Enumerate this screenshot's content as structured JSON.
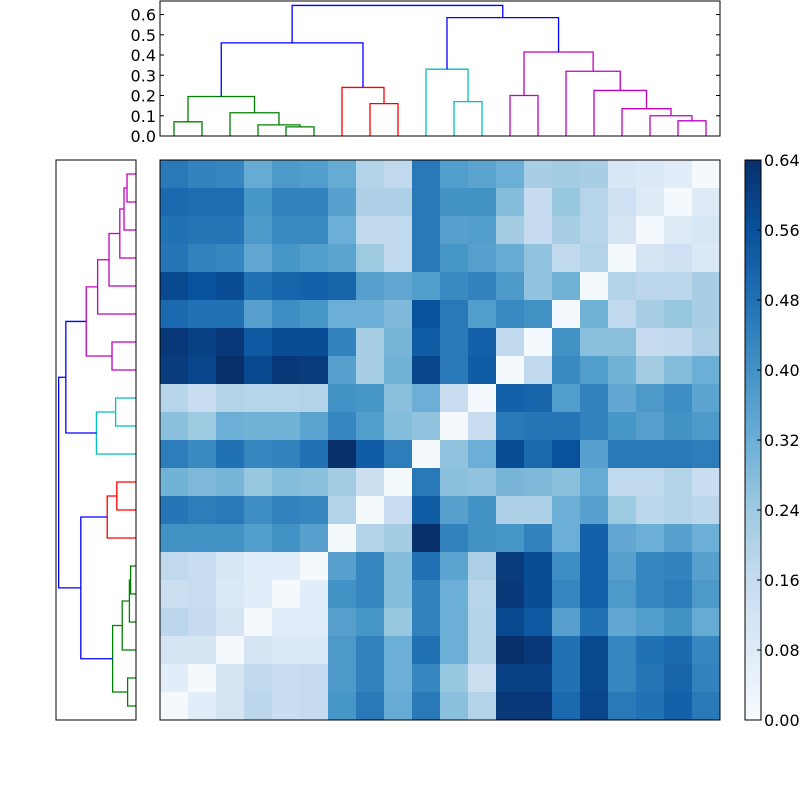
{
  "chart_data": {
    "type": "heatmap",
    "title": "",
    "description_kind": "clustered heatmap with row and column dendrograms",
    "colormap": [
      "#f7fbff",
      "#deebf7",
      "#c6dbef",
      "#9ecae1",
      "#6baed6",
      "#4292c6",
      "#2171b5",
      "#08519c",
      "#08306b"
    ],
    "vlim": [
      0,
      0.64
    ],
    "colorbar_ticks": [
      "0.00",
      "0.08",
      "0.16",
      "0.24",
      "0.32",
      "0.40",
      "0.48",
      "0.56",
      "0.64"
    ],
    "dendrogram_ticks": [
      "0.0",
      "0.1",
      "0.2",
      "0.3",
      "0.4",
      "0.5",
      "0.6"
    ],
    "dendrogram_ylim": [
      0,
      0.667
    ],
    "n_leaves": 20,
    "links": [
      [
        4,
        5,
        0.045,
        "green"
      ],
      [
        3,
        20,
        0.055,
        "green"
      ],
      [
        0,
        1,
        0.07,
        "green"
      ],
      [
        2,
        21,
        0.115,
        "green"
      ],
      [
        22,
        23,
        0.195,
        "green"
      ],
      [
        7,
        8,
        0.16,
        "red"
      ],
      [
        6,
        25,
        0.24,
        "red"
      ],
      [
        24,
        26,
        0.46,
        "blue"
      ],
      [
        10,
        11,
        0.17,
        "cyan"
      ],
      [
        9,
        28,
        0.33,
        "cyan"
      ],
      [
        18,
        19,
        0.075,
        "magenta"
      ],
      [
        17,
        30,
        0.1,
        "magenta"
      ],
      [
        16,
        31,
        0.135,
        "magenta"
      ],
      [
        15,
        32,
        0.225,
        "magenta"
      ],
      [
        12,
        13,
        0.2,
        "magenta"
      ],
      [
        14,
        33,
        0.32,
        "magenta"
      ],
      [
        34,
        35,
        0.415,
        "magenta"
      ],
      [
        29,
        36,
        0.585,
        "blue"
      ],
      [
        27,
        37,
        0.645,
        "blue"
      ]
    ],
    "link_colors": {
      "green": "#008000",
      "red": "#ff0000",
      "cyan": "#00bfbf",
      "magenta": "#bf00bf",
      "blue": "#0000ff"
    },
    "matrix_rows_top_to_bottom": [
      [
        0.46,
        0.44,
        0.43,
        0.33,
        0.38,
        0.37,
        0.33,
        0.2,
        0.17,
        0.46,
        0.37,
        0.35,
        0.32,
        0.22,
        0.23,
        0.22,
        0.1,
        0.09,
        0.07,
        0.01
      ],
      [
        0.5,
        0.49,
        0.49,
        0.39,
        0.44,
        0.44,
        0.36,
        0.21,
        0.21,
        0.46,
        0.4,
        0.4,
        0.28,
        0.16,
        0.25,
        0.19,
        0.13,
        0.08,
        0.01,
        0.08
      ],
      [
        0.48,
        0.47,
        0.47,
        0.38,
        0.42,
        0.42,
        0.32,
        0.17,
        0.17,
        0.46,
        0.36,
        0.37,
        0.23,
        0.16,
        0.22,
        0.19,
        0.11,
        0.01,
        0.08,
        0.1
      ],
      [
        0.47,
        0.44,
        0.43,
        0.34,
        0.39,
        0.37,
        0.35,
        0.24,
        0.17,
        0.46,
        0.39,
        0.36,
        0.33,
        0.26,
        0.17,
        0.2,
        0.01,
        0.11,
        0.13,
        0.09
      ],
      [
        0.58,
        0.56,
        0.57,
        0.48,
        0.51,
        0.52,
        0.51,
        0.36,
        0.34,
        0.37,
        0.42,
        0.44,
        0.38,
        0.26,
        0.31,
        0.01,
        0.2,
        0.18,
        0.18,
        0.22
      ],
      [
        0.5,
        0.48,
        0.48,
        0.36,
        0.41,
        0.39,
        0.32,
        0.32,
        0.29,
        0.56,
        0.46,
        0.37,
        0.42,
        0.4,
        0.01,
        0.31,
        0.17,
        0.22,
        0.25,
        0.22
      ],
      [
        0.62,
        0.6,
        0.62,
        0.54,
        0.57,
        0.57,
        0.44,
        0.22,
        0.3,
        0.53,
        0.46,
        0.52,
        0.17,
        0.01,
        0.4,
        0.27,
        0.27,
        0.16,
        0.17,
        0.21
      ],
      [
        0.61,
        0.59,
        0.64,
        0.58,
        0.62,
        0.61,
        0.36,
        0.22,
        0.31,
        0.59,
        0.46,
        0.53,
        0.01,
        0.17,
        0.42,
        0.37,
        0.31,
        0.23,
        0.28,
        0.32
      ],
      [
        0.19,
        0.15,
        0.2,
        0.19,
        0.19,
        0.2,
        0.4,
        0.39,
        0.27,
        0.32,
        0.15,
        0.01,
        0.52,
        0.51,
        0.37,
        0.44,
        0.34,
        0.38,
        0.41,
        0.35
      ],
      [
        0.27,
        0.24,
        0.32,
        0.31,
        0.31,
        0.35,
        0.43,
        0.37,
        0.28,
        0.26,
        0.01,
        0.15,
        0.46,
        0.47,
        0.47,
        0.44,
        0.39,
        0.36,
        0.4,
        0.38
      ],
      [
        0.45,
        0.42,
        0.48,
        0.43,
        0.44,
        0.48,
        0.64,
        0.53,
        0.45,
        0.01,
        0.26,
        0.32,
        0.57,
        0.5,
        0.56,
        0.36,
        0.46,
        0.46,
        0.46,
        0.45
      ],
      [
        0.31,
        0.29,
        0.3,
        0.25,
        0.28,
        0.27,
        0.23,
        0.14,
        0.01,
        0.46,
        0.27,
        0.26,
        0.3,
        0.29,
        0.27,
        0.33,
        0.17,
        0.17,
        0.2,
        0.15
      ],
      [
        0.47,
        0.45,
        0.46,
        0.41,
        0.44,
        0.43,
        0.2,
        0.01,
        0.15,
        0.53,
        0.36,
        0.4,
        0.21,
        0.21,
        0.32,
        0.36,
        0.24,
        0.18,
        0.2,
        0.18
      ],
      [
        0.4,
        0.4,
        0.4,
        0.37,
        0.4,
        0.36,
        0.01,
        0.2,
        0.23,
        0.64,
        0.44,
        0.4,
        0.39,
        0.44,
        0.32,
        0.52,
        0.34,
        0.32,
        0.36,
        0.32
      ],
      [
        0.17,
        0.15,
        0.1,
        0.07,
        0.07,
        0.01,
        0.36,
        0.43,
        0.28,
        0.48,
        0.35,
        0.21,
        0.61,
        0.57,
        0.41,
        0.52,
        0.36,
        0.43,
        0.44,
        0.36
      ],
      [
        0.14,
        0.15,
        0.09,
        0.07,
        0.01,
        0.07,
        0.4,
        0.43,
        0.28,
        0.44,
        0.32,
        0.19,
        0.62,
        0.57,
        0.43,
        0.52,
        0.38,
        0.43,
        0.45,
        0.38
      ],
      [
        0.18,
        0.16,
        0.11,
        0.01,
        0.07,
        0.07,
        0.36,
        0.39,
        0.25,
        0.44,
        0.32,
        0.2,
        0.58,
        0.54,
        0.36,
        0.48,
        0.34,
        0.37,
        0.4,
        0.33
      ],
      [
        0.11,
        0.11,
        0.01,
        0.11,
        0.09,
        0.09,
        0.38,
        0.44,
        0.32,
        0.48,
        0.32,
        0.2,
        0.64,
        0.62,
        0.48,
        0.58,
        0.43,
        0.48,
        0.5,
        0.43
      ],
      [
        0.07,
        0.01,
        0.11,
        0.17,
        0.15,
        0.16,
        0.38,
        0.44,
        0.32,
        0.43,
        0.25,
        0.14,
        0.6,
        0.6,
        0.48,
        0.58,
        0.43,
        0.47,
        0.51,
        0.44
      ],
      [
        0.01,
        0.07,
        0.11,
        0.18,
        0.15,
        0.16,
        0.39,
        0.46,
        0.33,
        0.46,
        0.27,
        0.2,
        0.62,
        0.62,
        0.5,
        0.59,
        0.46,
        0.48,
        0.52,
        0.46
      ]
    ]
  }
}
